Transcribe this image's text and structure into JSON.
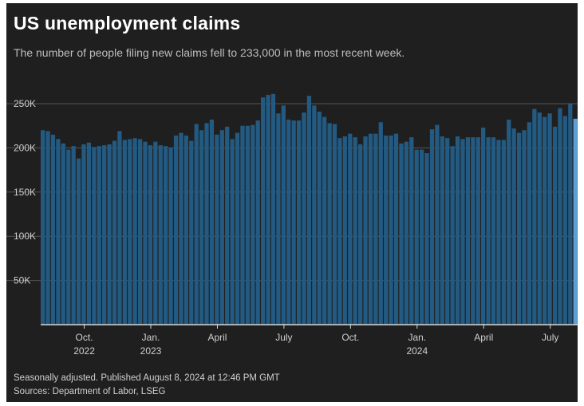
{
  "header": {
    "title": "US unemployment claims",
    "subtitle": "The number of people filing new claims fell to 233,000 in the most recent week."
  },
  "footer": {
    "note": "Seasonally adjusted. Published August 8, 2024 at 12:46 PM GMT",
    "sources": "Sources: Department of Labor, LSEG"
  },
  "colors": {
    "background": "#1f1f1f",
    "bar": "#235a82",
    "bar_latest": "#5b9fd3",
    "text": "#cfcfcf",
    "grid": "#555555"
  },
  "chart_data": {
    "type": "bar",
    "title": "US unemployment claims",
    "subtitle": "The number of people filing new claims fell to 233,000 in the most recent week.",
    "xlabel": "",
    "ylabel": "",
    "ylim": [
      0,
      250000
    ],
    "grid": true,
    "y_ticks": [
      {
        "value": 50000,
        "label": "50K"
      },
      {
        "value": 100000,
        "label": "100K"
      },
      {
        "value": 150000,
        "label": "150K"
      },
      {
        "value": 200000,
        "label": "200K"
      },
      {
        "value": 250000,
        "label": "250K"
      }
    ],
    "x_ticks": [
      {
        "index": 8,
        "label": "Oct.",
        "sublabel": "2022"
      },
      {
        "index": 21,
        "label": "Jan.",
        "sublabel": "2023"
      },
      {
        "index": 34,
        "label": "April",
        "sublabel": ""
      },
      {
        "index": 47,
        "label": "July",
        "sublabel": ""
      },
      {
        "index": 60,
        "label": "Oct.",
        "sublabel": ""
      },
      {
        "index": 73,
        "label": "Jan.",
        "sublabel": "2024"
      },
      {
        "index": 86,
        "label": "April",
        "sublabel": ""
      },
      {
        "index": 99,
        "label": "July",
        "sublabel": ""
      }
    ],
    "values": [
      220000,
      219000,
      215000,
      210000,
      205000,
      198000,
      202000,
      188000,
      204000,
      206000,
      201000,
      202000,
      203000,
      204000,
      208000,
      219000,
      209000,
      210000,
      211000,
      210000,
      207000,
      203000,
      207000,
      203000,
      202000,
      200000,
      214000,
      217000,
      214000,
      208000,
      227000,
      220000,
      228000,
      232000,
      215000,
      220000,
      224000,
      210000,
      217000,
      225000,
      225000,
      226000,
      231000,
      257000,
      260000,
      261000,
      239000,
      248000,
      232000,
      231000,
      231000,
      240000,
      259000,
      248000,
      241000,
      235000,
      228000,
      227000,
      211000,
      213000,
      216000,
      212000,
      204000,
      213000,
      216000,
      216000,
      229000,
      214000,
      214000,
      216000,
      205000,
      207000,
      212000,
      198000,
      198000,
      194000,
      221000,
      226000,
      213000,
      211000,
      202000,
      213000,
      210000,
      212000,
      212000,
      212000,
      223000,
      212000,
      212000,
      209000,
      209000,
      232000,
      222000,
      217000,
      220000,
      229000,
      244000,
      240000,
      235000,
      239000,
      224000,
      245000,
      236000,
      250000,
      233000
    ]
  }
}
